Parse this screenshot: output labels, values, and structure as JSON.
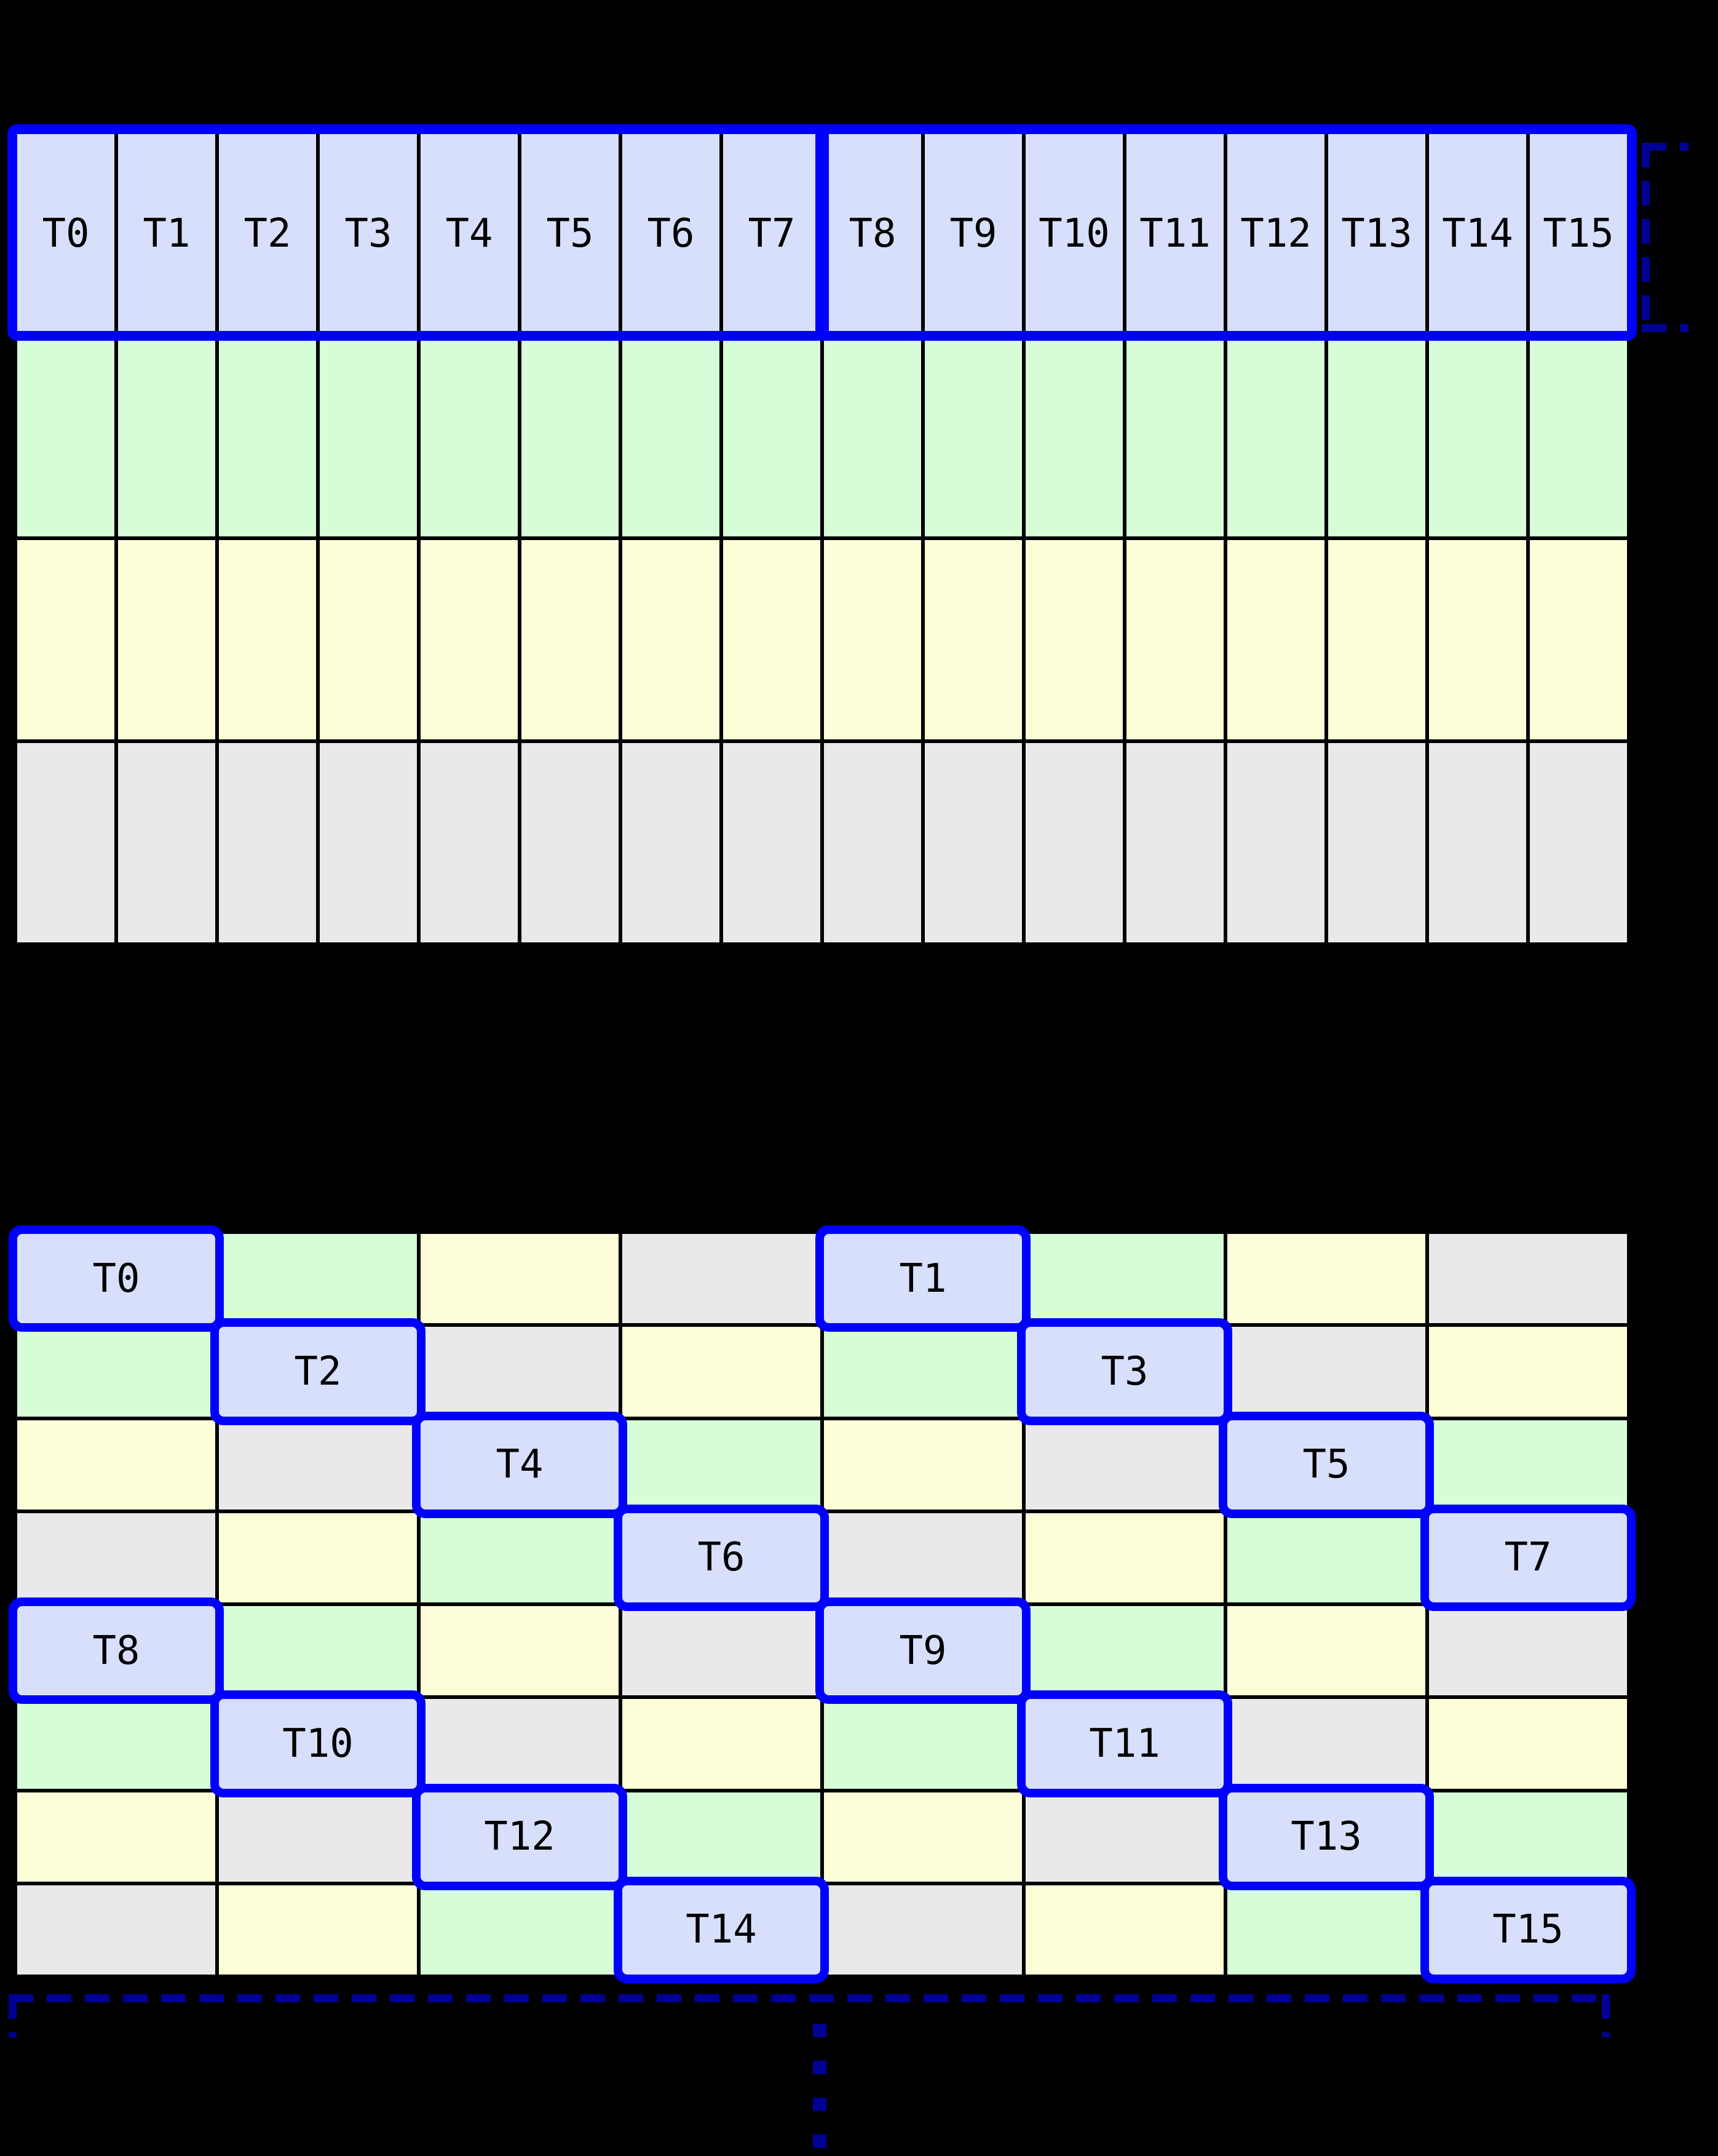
{
  "palette": {
    "lavender": "#d8dffb",
    "green": "#d6fdd6",
    "yellow": "#fdfed7",
    "gray": "#e9e9ea",
    "highlight_blue": "#0000ff",
    "bracket_navy": "#000095",
    "grid_line": "#000000",
    "background": "#000000"
  },
  "top_grid": {
    "columns": 16,
    "rows": [
      [
        {
          "c": "lavender",
          "t": "T0"
        },
        {
          "c": "lavender",
          "t": "T1"
        },
        {
          "c": "lavender",
          "t": "T2"
        },
        {
          "c": "lavender",
          "t": "T3"
        },
        {
          "c": "lavender",
          "t": "T4"
        },
        {
          "c": "lavender",
          "t": "T5"
        },
        {
          "c": "lavender",
          "t": "T6"
        },
        {
          "c": "lavender",
          "t": "T7"
        },
        {
          "c": "lavender",
          "t": "T8"
        },
        {
          "c": "lavender",
          "t": "T9"
        },
        {
          "c": "lavender",
          "t": "T10"
        },
        {
          "c": "lavender",
          "t": "T11"
        },
        {
          "c": "lavender",
          "t": "T12"
        },
        {
          "c": "lavender",
          "t": "T13"
        },
        {
          "c": "lavender",
          "t": "T14"
        },
        {
          "c": "lavender",
          "t": "T15"
        }
      ],
      [
        {
          "c": "green"
        },
        {
          "c": "green"
        },
        {
          "c": "green"
        },
        {
          "c": "green"
        },
        {
          "c": "green"
        },
        {
          "c": "green"
        },
        {
          "c": "green"
        },
        {
          "c": "green"
        },
        {
          "c": "green"
        },
        {
          "c": "green"
        },
        {
          "c": "green"
        },
        {
          "c": "green"
        },
        {
          "c": "green"
        },
        {
          "c": "green"
        },
        {
          "c": "green"
        },
        {
          "c": "green"
        }
      ],
      [
        {
          "c": "yellow"
        },
        {
          "c": "yellow"
        },
        {
          "c": "yellow"
        },
        {
          "c": "yellow"
        },
        {
          "c": "yellow"
        },
        {
          "c": "yellow"
        },
        {
          "c": "yellow"
        },
        {
          "c": "yellow"
        },
        {
          "c": "yellow"
        },
        {
          "c": "yellow"
        },
        {
          "c": "yellow"
        },
        {
          "c": "yellow"
        },
        {
          "c": "yellow"
        },
        {
          "c": "yellow"
        },
        {
          "c": "yellow"
        },
        {
          "c": "yellow"
        }
      ],
      [
        {
          "c": "gray"
        },
        {
          "c": "gray"
        },
        {
          "c": "gray"
        },
        {
          "c": "gray"
        },
        {
          "c": "gray"
        },
        {
          "c": "gray"
        },
        {
          "c": "gray"
        },
        {
          "c": "gray"
        },
        {
          "c": "gray"
        },
        {
          "c": "gray"
        },
        {
          "c": "gray"
        },
        {
          "c": "gray"
        },
        {
          "c": "gray"
        },
        {
          "c": "gray"
        },
        {
          "c": "gray"
        },
        {
          "c": "gray"
        }
      ]
    ]
  },
  "bottom_grid": {
    "columns": 8,
    "rows": [
      [
        {
          "c": "lavender",
          "t": "T0",
          "hl": true
        },
        {
          "c": "green"
        },
        {
          "c": "yellow"
        },
        {
          "c": "gray"
        },
        {
          "c": "lavender",
          "t": "T1",
          "hl": true
        },
        {
          "c": "green"
        },
        {
          "c": "yellow"
        },
        {
          "c": "gray"
        }
      ],
      [
        {
          "c": "green"
        },
        {
          "c": "lavender",
          "t": "T2",
          "hl": true
        },
        {
          "c": "gray"
        },
        {
          "c": "yellow"
        },
        {
          "c": "green"
        },
        {
          "c": "lavender",
          "t": "T3",
          "hl": true
        },
        {
          "c": "gray"
        },
        {
          "c": "yellow"
        }
      ],
      [
        {
          "c": "yellow"
        },
        {
          "c": "gray"
        },
        {
          "c": "lavender",
          "t": "T4",
          "hl": true
        },
        {
          "c": "green"
        },
        {
          "c": "yellow"
        },
        {
          "c": "gray"
        },
        {
          "c": "lavender",
          "t": "T5",
          "hl": true
        },
        {
          "c": "green"
        }
      ],
      [
        {
          "c": "gray"
        },
        {
          "c": "yellow"
        },
        {
          "c": "green"
        },
        {
          "c": "lavender",
          "t": "T6",
          "hl": true
        },
        {
          "c": "gray"
        },
        {
          "c": "yellow"
        },
        {
          "c": "green"
        },
        {
          "c": "lavender",
          "t": "T7",
          "hl": true
        }
      ],
      [
        {
          "c": "lavender",
          "t": "T8",
          "hl": true
        },
        {
          "c": "green"
        },
        {
          "c": "yellow"
        },
        {
          "c": "gray"
        },
        {
          "c": "lavender",
          "t": "T9",
          "hl": true
        },
        {
          "c": "green"
        },
        {
          "c": "yellow"
        },
        {
          "c": "gray"
        }
      ],
      [
        {
          "c": "green"
        },
        {
          "c": "lavender",
          "t": "T10",
          "hl": true
        },
        {
          "c": "gray"
        },
        {
          "c": "yellow"
        },
        {
          "c": "green"
        },
        {
          "c": "lavender",
          "t": "T11",
          "hl": true
        },
        {
          "c": "gray"
        },
        {
          "c": "yellow"
        }
      ],
      [
        {
          "c": "yellow"
        },
        {
          "c": "gray"
        },
        {
          "c": "lavender",
          "t": "T12",
          "hl": true
        },
        {
          "c": "green"
        },
        {
          "c": "yellow"
        },
        {
          "c": "gray"
        },
        {
          "c": "lavender",
          "t": "T13",
          "hl": true
        },
        {
          "c": "green"
        }
      ],
      [
        {
          "c": "gray"
        },
        {
          "c": "yellow"
        },
        {
          "c": "green"
        },
        {
          "c": "lavender",
          "t": "T14",
          "hl": true
        },
        {
          "c": "gray"
        },
        {
          "c": "yellow"
        },
        {
          "c": "green"
        },
        {
          "c": "lavender",
          "t": "T15",
          "hl": true
        }
      ]
    ]
  },
  "annotations": {
    "warp_row_outline": {
      "style": "solid",
      "split_after_column": 8
    },
    "first_row_bracket": {
      "side": "right",
      "style": "dashed"
    },
    "bottom_width_bracket": {
      "style": "dashed"
    },
    "continuation_ellipsis": {
      "dot_count": 4
    }
  }
}
